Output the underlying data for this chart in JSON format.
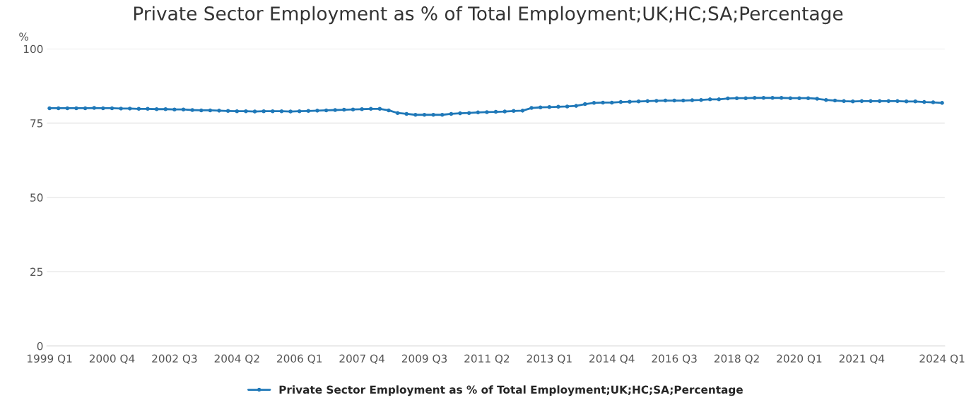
{
  "chart_data": {
    "type": "line",
    "title": "Private Sector Employment as % of Total Employment;UK;HC;SA;Percentage",
    "ylabel": "%",
    "categories": [
      "1999 Q1",
      null,
      null,
      null,
      null,
      null,
      null,
      "2000 Q4",
      null,
      null,
      null,
      null,
      null,
      null,
      "2002 Q3",
      null,
      null,
      null,
      null,
      null,
      null,
      "2004 Q2",
      null,
      null,
      null,
      null,
      null,
      null,
      "2006 Q1",
      null,
      null,
      null,
      null,
      null,
      null,
      "2007 Q4",
      null,
      null,
      null,
      null,
      null,
      null,
      "2009 Q3",
      null,
      null,
      null,
      null,
      null,
      null,
      "2011 Q2",
      null,
      null,
      null,
      null,
      null,
      null,
      "2013 Q1",
      null,
      null,
      null,
      null,
      null,
      null,
      "2014 Q4",
      null,
      null,
      null,
      null,
      null,
      null,
      "2016 Q3",
      null,
      null,
      null,
      null,
      null,
      null,
      "2018 Q2",
      null,
      null,
      null,
      null,
      null,
      null,
      "2020 Q1",
      null,
      null,
      null,
      null,
      null,
      null,
      "2021 Q4",
      null,
      null,
      null,
      null,
      null,
      null,
      null,
      null,
      "2024 Q1"
    ],
    "series": [
      {
        "name": "Private Sector Employment as % of Total Employment;UK;HC;SA;Percentage",
        "color": "#1f78b8",
        "values": [
          80.0,
          80.0,
          80.0,
          80.0,
          80.0,
          80.1,
          80.0,
          80.0,
          79.9,
          79.9,
          79.8,
          79.8,
          79.7,
          79.7,
          79.6,
          79.6,
          79.4,
          79.3,
          79.3,
          79.2,
          79.1,
          79.0,
          79.0,
          78.9,
          79.0,
          79.0,
          79.0,
          78.9,
          79.0,
          79.1,
          79.2,
          79.3,
          79.4,
          79.5,
          79.6,
          79.7,
          79.8,
          79.8,
          79.3,
          78.4,
          78.1,
          77.8,
          77.8,
          77.8,
          77.8,
          78.1,
          78.3,
          78.4,
          78.6,
          78.7,
          78.8,
          78.9,
          79.1,
          79.2,
          80.1,
          80.3,
          80.4,
          80.5,
          80.6,
          80.8,
          81.4,
          81.8,
          81.9,
          81.9,
          82.1,
          82.2,
          82.3,
          82.4,
          82.5,
          82.6,
          82.6,
          82.6,
          82.7,
          82.8,
          83.0,
          83.0,
          83.3,
          83.4,
          83.4,
          83.5,
          83.5,
          83.5,
          83.5,
          83.4,
          83.4,
          83.4,
          83.2,
          82.8,
          82.6,
          82.4,
          82.3,
          82.4,
          82.4,
          82.4,
          82.4,
          82.4,
          82.3,
          82.3,
          82.1,
          82.0,
          81.8
        ]
      }
    ],
    "ylim": [
      0,
      100
    ],
    "yticks": [
      0,
      25,
      50,
      75,
      100
    ],
    "grid": "y",
    "legend": "bottom",
    "marker": "circle",
    "line_style": "solid"
  }
}
